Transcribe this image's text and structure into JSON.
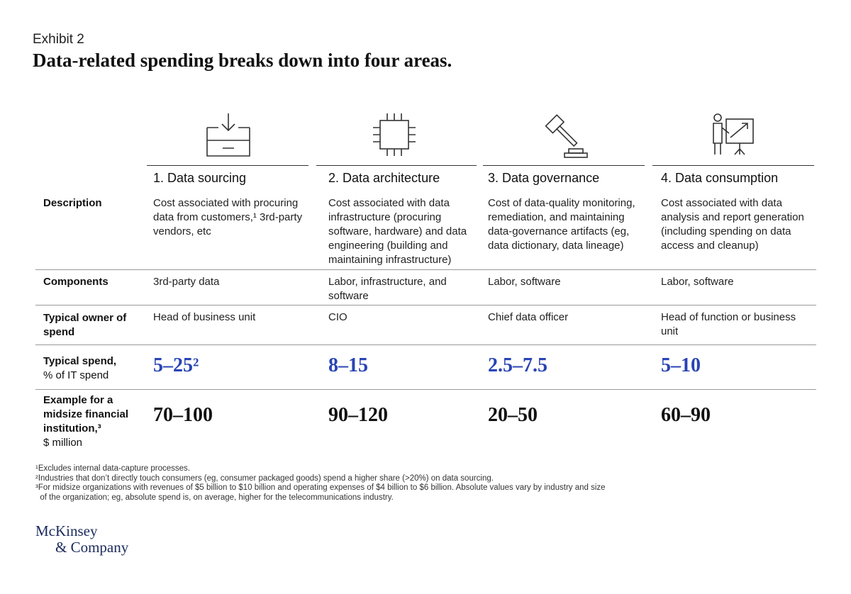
{
  "header": {
    "exhibit": "Exhibit 2",
    "title": "Data-related spending breaks down into four areas."
  },
  "columns": [
    {
      "icon": "data-inbox-icon",
      "heading": "1. Data sourcing"
    },
    {
      "icon": "chip-icon",
      "heading": "2. Data architecture"
    },
    {
      "icon": "gavel-icon",
      "heading": "3. Data governance"
    },
    {
      "icon": "presentation-icon",
      "heading": "4. Data consumption"
    }
  ],
  "rows": {
    "description": {
      "label": "Description",
      "cells": [
        "Cost associated with procuring data from customers,¹ 3rd-party vendors, etc",
        "Cost associated with data infrastructure (procuring software, hardware) and data engineering (building and maintaining infrastructure)",
        "Cost of data-quality monitoring, remediation, and maintaining data-governance artifacts (eg, data dictionary, data lineage)",
        "Cost associated with data analysis and report generation (including spending on data access and cleanup)"
      ]
    },
    "components": {
      "label": "Components",
      "cells": [
        "3rd-party data",
        "Labor, infrastructure, and software",
        "Labor, software",
        "Labor, software"
      ]
    },
    "owner": {
      "label": "Typical owner of spend",
      "cells": [
        "Head of business unit",
        "CIO",
        "Chief data officer",
        "Head of function or business unit"
      ]
    },
    "spend": {
      "label": "Typical spend,",
      "sublabel": "% of IT spend",
      "cells": [
        "5–25²",
        "8–15",
        "2.5–7.5",
        "5–10"
      ]
    },
    "example": {
      "label": "Example for a midsize financial institution,³",
      "sublabel": "$ million",
      "cells": [
        "70–100",
        "90–120",
        "20–50",
        "60–90"
      ]
    }
  },
  "footnotes": [
    "¹Excludes internal data-capture processes.",
    "²Industries that don’t directly touch consumers (eg, consumer packaged goods) spend a higher share (>20%) on data sourcing.",
    "³For midsize organizations with revenues of $5 billion to $10 billion and operating expenses of $4 billion to $6 billion. Absolute values vary by industry and size",
    "  of the organization; eg, absolute spend is, on average, higher for the telecommunications industry."
  ],
  "logo": {
    "line1": "McKinsey",
    "line2": "& Company"
  },
  "colors": {
    "accent_blue": "#2944b5",
    "logo_navy": "#1b2a5c"
  }
}
